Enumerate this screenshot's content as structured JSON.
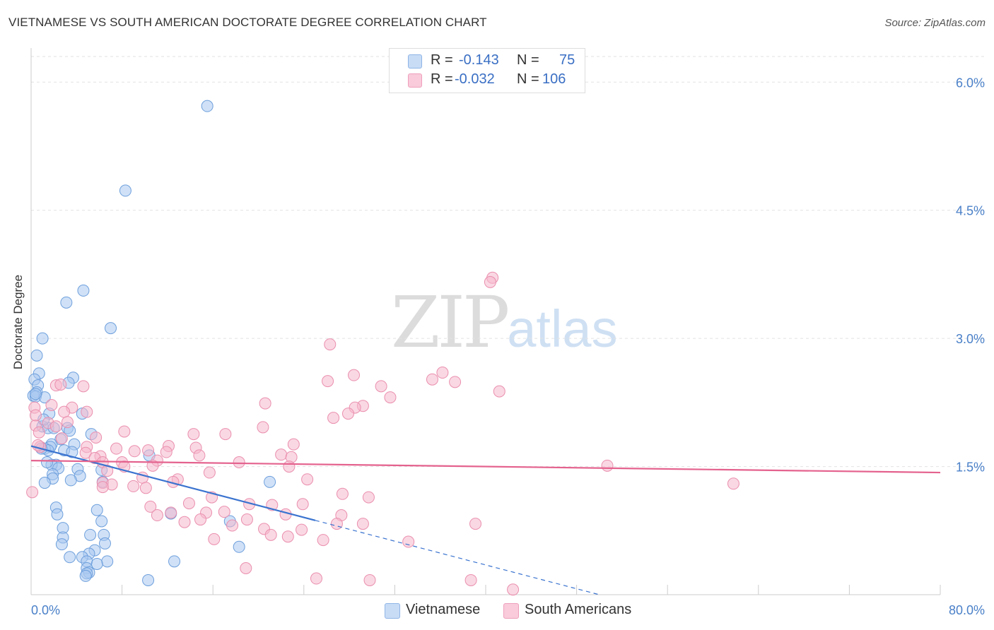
{
  "header": {
    "title": "VIETNAMESE VS SOUTH AMERICAN DOCTORATE DEGREE CORRELATION CHART",
    "source": "Source: ZipAtlas.com"
  },
  "watermark": {
    "zip": "ZIP",
    "atlas": "atlas"
  },
  "legend": {
    "rows": [
      {
        "r_label": "R =",
        "r_value": "-0.143",
        "n_label": "N =",
        "n_value": "75",
        "color": "#a9c8f0"
      },
      {
        "r_label": "R =",
        "r_value": "-0.032",
        "n_label": "N =",
        "n_value": "106",
        "color": "#f6b8cc"
      }
    ]
  },
  "bottom_legend": {
    "items": [
      {
        "label": "Vietnamese",
        "color": "#a9c8f0"
      },
      {
        "label": "South Americans",
        "color": "#f6b8cc"
      }
    ]
  },
  "chart_data": {
    "type": "scatter",
    "title": "VIETNAMESE VS SOUTH AMERICAN DOCTORATE DEGREE CORRELATION CHART",
    "xlabel": "",
    "ylabel": "Doctorate Degree",
    "xlim": [
      0,
      80
    ],
    "ylim": [
      0,
      6.3
    ],
    "x_tick_labels": [
      {
        "value": 0,
        "label": "0.0%"
      },
      {
        "value": 80,
        "label": "80.0%"
      }
    ],
    "y_tick_labels": [
      {
        "value": 1.5,
        "label": "1.5%"
      },
      {
        "value": 3.0,
        "label": "3.0%"
      },
      {
        "value": 4.5,
        "label": "4.5%"
      },
      {
        "value": 6.0,
        "label": "6.0%"
      }
    ],
    "grid": true,
    "series": [
      {
        "name": "Vietnamese",
        "color": "#a9c8f0",
        "stroke": "#6d9fdc",
        "trend": {
          "x0": 0,
          "y0": 1.74,
          "x1": 25,
          "y1": 0.87,
          "dash_to_x": 50,
          "dash_to_y": 0.0,
          "color": "#3a73cf"
        },
        "points": [
          [
            15.5,
            5.72
          ],
          [
            8.3,
            4.73
          ],
          [
            4.6,
            3.56
          ],
          [
            3.1,
            3.42
          ],
          [
            7.0,
            3.12
          ],
          [
            1.0,
            3.0
          ],
          [
            0.5,
            2.8
          ],
          [
            0.7,
            2.59
          ],
          [
            3.7,
            2.54
          ],
          [
            0.3,
            2.52
          ],
          [
            0.6,
            2.45
          ],
          [
            3.3,
            2.48
          ],
          [
            0.5,
            2.37
          ],
          [
            0.2,
            2.33
          ],
          [
            0.4,
            2.32
          ],
          [
            1.2,
            2.31
          ],
          [
            4.5,
            2.12
          ],
          [
            1.6,
            2.12
          ],
          [
            1.0,
            1.97
          ],
          [
            1.5,
            1.95
          ],
          [
            3.2,
            1.95
          ],
          [
            3.4,
            1.92
          ],
          [
            5.3,
            1.88
          ],
          [
            2.6,
            1.82
          ],
          [
            1.8,
            1.76
          ],
          [
            3.8,
            1.76
          ],
          [
            1.7,
            1.73
          ],
          [
            1.2,
            1.71
          ],
          [
            2.9,
            1.69
          ],
          [
            1.5,
            1.69
          ],
          [
            3.6,
            1.67
          ],
          [
            10.4,
            1.63
          ],
          [
            2.2,
            1.52
          ],
          [
            1.8,
            1.52
          ],
          [
            2.4,
            1.48
          ],
          [
            4.1,
            1.47
          ],
          [
            6.2,
            1.46
          ],
          [
            1.9,
            1.41
          ],
          [
            4.3,
            1.39
          ],
          [
            1.9,
            1.36
          ],
          [
            3.5,
            1.34
          ],
          [
            6.3,
            1.32
          ],
          [
            1.2,
            1.31
          ],
          [
            21.0,
            1.32
          ],
          [
            2.2,
            1.02
          ],
          [
            5.8,
            0.99
          ],
          [
            12.3,
            0.95
          ],
          [
            2.3,
            0.94
          ],
          [
            6.2,
            0.86
          ],
          [
            17.5,
            0.86
          ],
          [
            2.8,
            0.78
          ],
          [
            5.2,
            0.7
          ],
          [
            6.4,
            0.7
          ],
          [
            2.8,
            0.67
          ],
          [
            2.7,
            0.59
          ],
          [
            6.5,
            0.6
          ],
          [
            18.3,
            0.56
          ],
          [
            5.6,
            0.52
          ],
          [
            5.1,
            0.48
          ],
          [
            3.4,
            0.44
          ],
          [
            4.5,
            0.44
          ],
          [
            4.9,
            0.39
          ],
          [
            6.7,
            0.39
          ],
          [
            12.6,
            0.39
          ],
          [
            5.8,
            0.36
          ],
          [
            4.9,
            0.31
          ],
          [
            5.1,
            0.26
          ],
          [
            4.9,
            0.25
          ],
          [
            4.8,
            0.22
          ],
          [
            10.3,
            0.17
          ],
          [
            0.4,
            2.35
          ],
          [
            1.1,
            2.05
          ],
          [
            2.0,
            1.95
          ],
          [
            0.9,
            1.71
          ],
          [
            1.4,
            1.55
          ]
        ]
      },
      {
        "name": "South Americans",
        "color": "#f6b8cc",
        "stroke": "#ea8fae",
        "trend": {
          "x0": 0,
          "y0": 1.57,
          "x1": 80,
          "y1": 1.43,
          "color": "#e4628e"
        },
        "points": [
          [
            40.6,
            3.71
          ],
          [
            40.4,
            3.66
          ],
          [
            26.3,
            2.93
          ],
          [
            36.2,
            2.6
          ],
          [
            28.4,
            2.57
          ],
          [
            35.3,
            2.52
          ],
          [
            37.3,
            2.49
          ],
          [
            26.1,
            2.5
          ],
          [
            30.8,
            2.44
          ],
          [
            4.6,
            2.44
          ],
          [
            2.2,
            2.45
          ],
          [
            2.6,
            2.46
          ],
          [
            41.2,
            2.38
          ],
          [
            31.6,
            2.31
          ],
          [
            20.6,
            2.24
          ],
          [
            29.2,
            2.21
          ],
          [
            28.5,
            2.19
          ],
          [
            27.9,
            2.12
          ],
          [
            0.3,
            2.19
          ],
          [
            1.8,
            2.22
          ],
          [
            3.6,
            2.19
          ],
          [
            2.9,
            2.14
          ],
          [
            4.9,
            2.14
          ],
          [
            3.2,
            2.02
          ],
          [
            26.6,
            2.07
          ],
          [
            1.5,
            2.01
          ],
          [
            0.4,
            1.98
          ],
          [
            2.2,
            1.97
          ],
          [
            20.4,
            1.96
          ],
          [
            0.7,
            1.9
          ],
          [
            8.2,
            1.91
          ],
          [
            17.1,
            1.88
          ],
          [
            14.3,
            1.88
          ],
          [
            5.7,
            1.84
          ],
          [
            2.7,
            1.83
          ],
          [
            23.1,
            1.76
          ],
          [
            12.1,
            1.74
          ],
          [
            14.5,
            1.72
          ],
          [
            4.9,
            1.73
          ],
          [
            0.8,
            1.73
          ],
          [
            7.5,
            1.71
          ],
          [
            10.3,
            1.69
          ],
          [
            11.9,
            1.67
          ],
          [
            9.1,
            1.68
          ],
          [
            22.0,
            1.64
          ],
          [
            4.8,
            1.66
          ],
          [
            14.8,
            1.63
          ],
          [
            22.9,
            1.61
          ],
          [
            6.1,
            1.62
          ],
          [
            5.6,
            1.6
          ],
          [
            11.1,
            1.57
          ],
          [
            6.3,
            1.55
          ],
          [
            8.0,
            1.55
          ],
          [
            18.3,
            1.55
          ],
          [
            8.2,
            1.5
          ],
          [
            22.7,
            1.5
          ],
          [
            10.7,
            1.51
          ],
          [
            6.7,
            1.45
          ],
          [
            15.7,
            1.43
          ],
          [
            12.9,
            1.35
          ],
          [
            9.8,
            1.37
          ],
          [
            24.3,
            1.35
          ],
          [
            12.5,
            1.32
          ],
          [
            6.3,
            1.31
          ],
          [
            7.1,
            1.29
          ],
          [
            9.0,
            1.27
          ],
          [
            10.1,
            1.25
          ],
          [
            6.3,
            1.26
          ],
          [
            50.7,
            1.51
          ],
          [
            61.8,
            1.3
          ],
          [
            27.4,
            1.18
          ],
          [
            29.7,
            1.14
          ],
          [
            15.9,
            1.14
          ],
          [
            23.9,
            1.06
          ],
          [
            19.2,
            1.06
          ],
          [
            13.9,
            1.07
          ],
          [
            21.2,
            1.05
          ],
          [
            10.5,
            1.03
          ],
          [
            17.0,
            0.97
          ],
          [
            15.4,
            0.96
          ],
          [
            12.3,
            0.96
          ],
          [
            11.1,
            0.93
          ],
          [
            22.4,
            0.94
          ],
          [
            27.3,
            0.93
          ],
          [
            14.9,
            0.88
          ],
          [
            13.5,
            0.85
          ],
          [
            19.0,
            0.88
          ],
          [
            29.2,
            0.83
          ],
          [
            26.9,
            0.83
          ],
          [
            39.1,
            0.83
          ],
          [
            17.7,
            0.81
          ],
          [
            20.5,
            0.77
          ],
          [
            21.1,
            0.7
          ],
          [
            22.6,
            0.68
          ],
          [
            25.7,
            0.64
          ],
          [
            18.9,
            0.31
          ],
          [
            25.1,
            0.19
          ],
          [
            29.8,
            0.17
          ],
          [
            38.7,
            0.17
          ],
          [
            42.4,
            0.06
          ],
          [
            0.1,
            1.2
          ],
          [
            0.4,
            2.1
          ],
          [
            0.6,
            1.75
          ],
          [
            23.8,
            0.76
          ],
          [
            33.2,
            0.62
          ],
          [
            16.1,
            0.65
          ]
        ]
      }
    ]
  }
}
